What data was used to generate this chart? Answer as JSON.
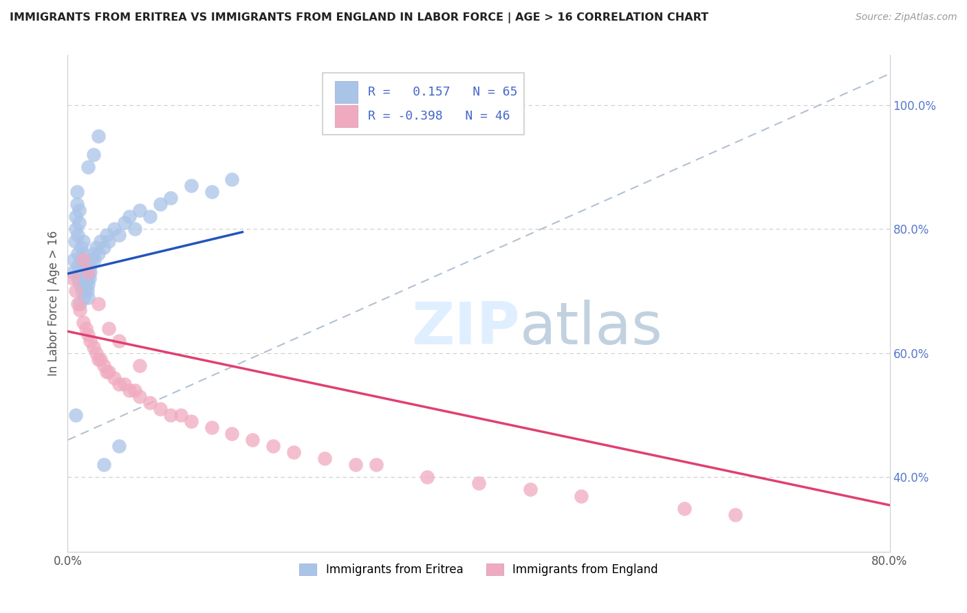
{
  "title": "IMMIGRANTS FROM ERITREA VS IMMIGRANTS FROM ENGLAND IN LABOR FORCE | AGE > 16 CORRELATION CHART",
  "source": "Source: ZipAtlas.com",
  "ylabel": "In Labor Force | Age > 16",
  "legend_label1": "Immigrants from Eritrea",
  "legend_label2": "Immigrants from England",
  "R1": 0.157,
  "N1": 65,
  "R2": -0.398,
  "N2": 46,
  "color1": "#aac4e8",
  "color2": "#f0aac0",
  "line_color1": "#2255bb",
  "line_color2": "#e04070",
  "dashed_line_color": "#aabbcc",
  "xlim": [
    0.0,
    0.8
  ],
  "ylim": [
    0.28,
    1.08
  ],
  "yticks": [
    1.0,
    0.8,
    0.6,
    0.4
  ],
  "ytick_labels": [
    "100.0%",
    "80.0%",
    "60.0%",
    "40.0%"
  ],
  "xticks": [
    0.0,
    0.8
  ],
  "xtick_labels": [
    "0.0%",
    "80.0%"
  ],
  "eritrea_x": [
    0.005,
    0.006,
    0.007,
    0.008,
    0.008,
    0.009,
    0.009,
    0.01,
    0.01,
    0.01,
    0.01,
    0.011,
    0.011,
    0.012,
    0.012,
    0.013,
    0.013,
    0.014,
    0.014,
    0.015,
    0.015,
    0.015,
    0.016,
    0.016,
    0.016,
    0.017,
    0.017,
    0.018,
    0.018,
    0.019,
    0.019,
    0.02,
    0.02,
    0.02,
    0.021,
    0.022,
    0.022,
    0.023,
    0.025,
    0.026,
    0.028,
    0.03,
    0.032,
    0.035,
    0.038,
    0.04,
    0.045,
    0.05,
    0.055,
    0.06,
    0.065,
    0.07,
    0.08,
    0.09,
    0.1,
    0.12,
    0.14,
    0.16,
    0.02,
    0.025,
    0.03,
    0.012,
    0.008,
    0.05,
    0.035
  ],
  "eritrea_y": [
    0.73,
    0.75,
    0.78,
    0.8,
    0.82,
    0.84,
    0.86,
    0.72,
    0.74,
    0.76,
    0.79,
    0.81,
    0.83,
    0.71,
    0.73,
    0.75,
    0.77,
    0.7,
    0.72,
    0.74,
    0.76,
    0.78,
    0.69,
    0.71,
    0.73,
    0.7,
    0.72,
    0.71,
    0.73,
    0.7,
    0.72,
    0.69,
    0.71,
    0.73,
    0.72,
    0.74,
    0.73,
    0.75,
    0.76,
    0.75,
    0.77,
    0.76,
    0.78,
    0.77,
    0.79,
    0.78,
    0.8,
    0.79,
    0.81,
    0.82,
    0.8,
    0.83,
    0.82,
    0.84,
    0.85,
    0.87,
    0.86,
    0.88,
    0.9,
    0.92,
    0.95,
    0.68,
    0.5,
    0.45,
    0.42
  ],
  "england_x": [
    0.005,
    0.008,
    0.01,
    0.012,
    0.015,
    0.018,
    0.02,
    0.022,
    0.025,
    0.028,
    0.03,
    0.032,
    0.035,
    0.038,
    0.04,
    0.045,
    0.05,
    0.055,
    0.06,
    0.065,
    0.07,
    0.08,
    0.09,
    0.1,
    0.11,
    0.12,
    0.14,
    0.16,
    0.18,
    0.2,
    0.22,
    0.25,
    0.28,
    0.3,
    0.35,
    0.4,
    0.45,
    0.5,
    0.6,
    0.65,
    0.015,
    0.02,
    0.03,
    0.04,
    0.05,
    0.07
  ],
  "england_y": [
    0.72,
    0.7,
    0.68,
    0.67,
    0.65,
    0.64,
    0.63,
    0.62,
    0.61,
    0.6,
    0.59,
    0.59,
    0.58,
    0.57,
    0.57,
    0.56,
    0.55,
    0.55,
    0.54,
    0.54,
    0.53,
    0.52,
    0.51,
    0.5,
    0.5,
    0.49,
    0.48,
    0.47,
    0.46,
    0.45,
    0.44,
    0.43,
    0.42,
    0.42,
    0.4,
    0.39,
    0.38,
    0.37,
    0.35,
    0.34,
    0.75,
    0.73,
    0.68,
    0.64,
    0.62,
    0.58
  ],
  "blue_line_x": [
    0.0,
    0.17
  ],
  "blue_line_y": [
    0.728,
    0.795
  ],
  "pink_line_x": [
    0.0,
    0.8
  ],
  "pink_line_y": [
    0.635,
    0.355
  ],
  "dash_line_x": [
    0.0,
    0.8
  ],
  "dash_line_y": [
    0.46,
    1.05
  ]
}
